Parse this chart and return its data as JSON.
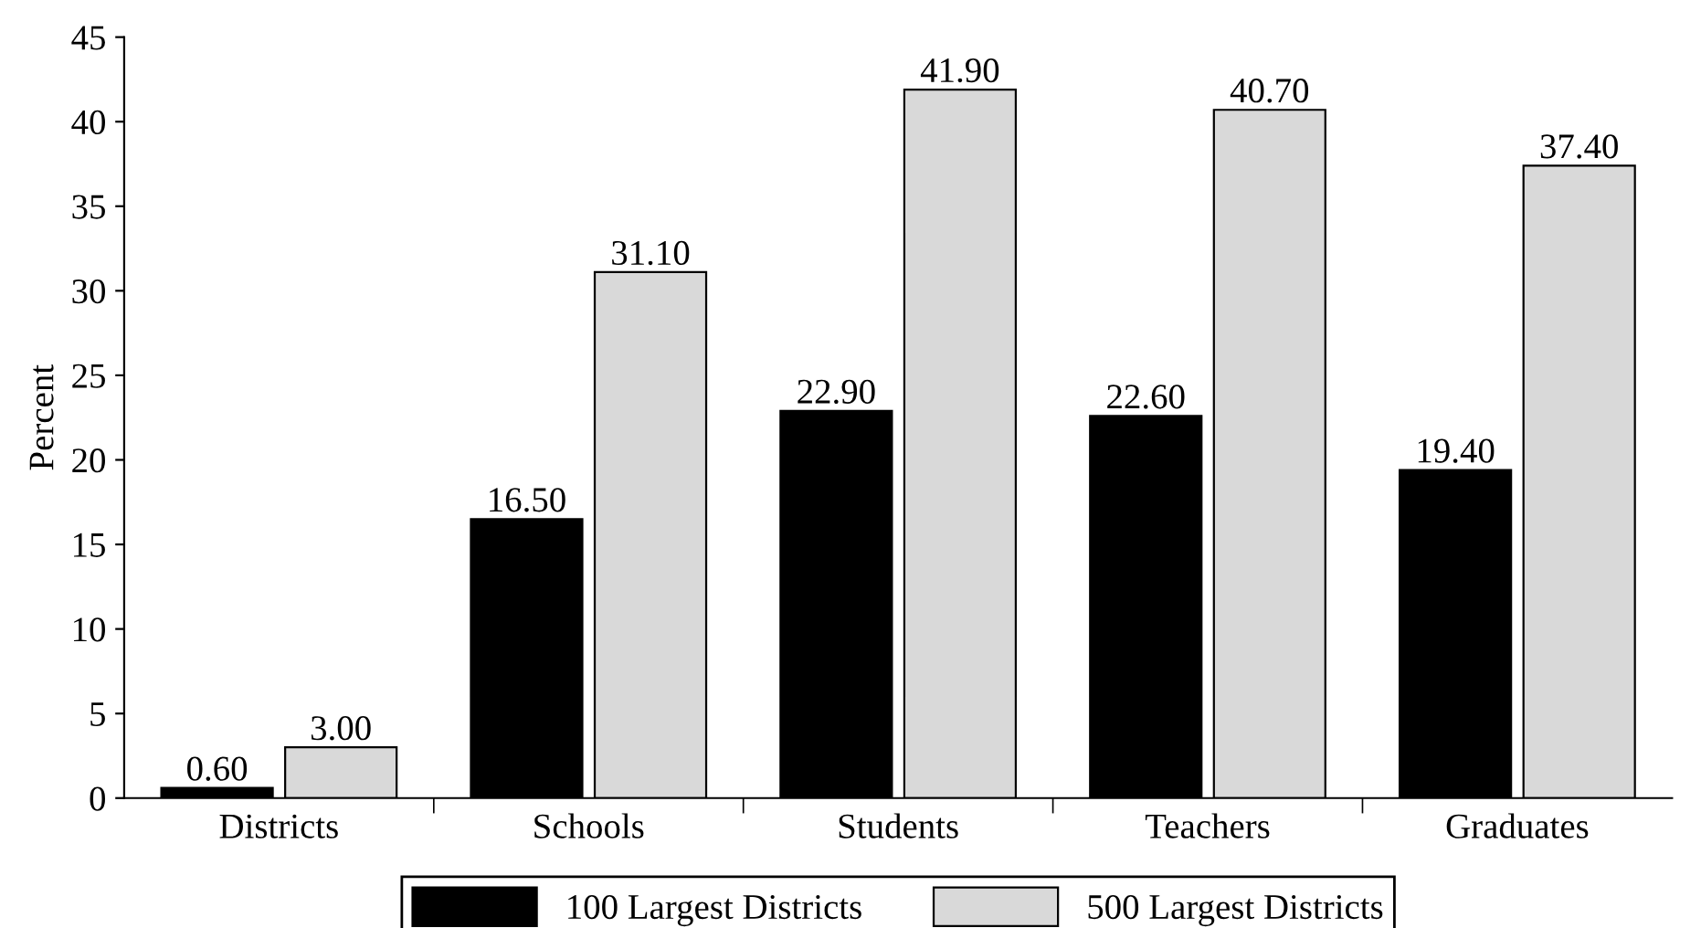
{
  "chart_data": {
    "type": "bar",
    "ylabel": "Percent",
    "categories": [
      "Districts",
      "Schools",
      "Students",
      "Teachers",
      "Graduates"
    ],
    "series": [
      {
        "name": "100 Largest Districts",
        "color": "#000000",
        "values": [
          0.6,
          16.5,
          22.9,
          22.6,
          19.4
        ],
        "value_labels": [
          "0.60",
          "16.50",
          "22.90",
          "22.60",
          "19.40"
        ]
      },
      {
        "name": "500 Largest Districts",
        "color": "#d9d9d9",
        "values": [
          3.0,
          31.1,
          41.9,
          40.7,
          37.4
        ],
        "value_labels": [
          "3.00",
          "31.10",
          "41.90",
          "40.70",
          "37.40"
        ]
      }
    ],
    "ylim": [
      0,
      45
    ],
    "yticks": [
      0,
      5,
      10,
      15,
      20,
      25,
      30,
      35,
      40,
      45
    ],
    "grid": false,
    "legend": "bottom"
  }
}
